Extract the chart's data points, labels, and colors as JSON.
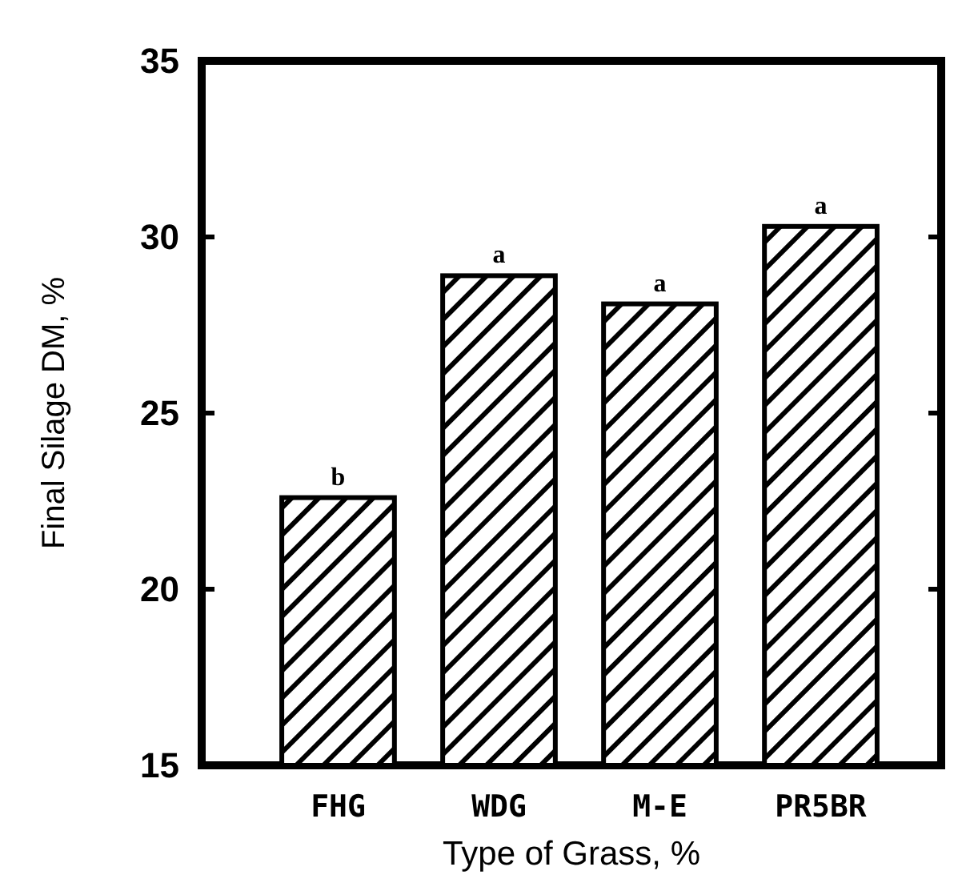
{
  "chart_data": {
    "type": "bar",
    "xlabel": "Type of Grass, %",
    "ylabel": "Final Silage DM, %",
    "categories": [
      "FHG",
      "WDG",
      "M-E",
      "PR5BR"
    ],
    "values": [
      22.6,
      28.9,
      28.1,
      30.3
    ],
    "color": "#000000",
    "ylim": [
      15,
      35
    ],
    "yticks": [
      15,
      20,
      25,
      30,
      35
    ],
    "annotations": [
      {
        "text": "b",
        "x": "FHG",
        "y": 22.6
      },
      {
        "text": "a",
        "x": "WDG",
        "y": 28.9
      },
      {
        "text": "a",
        "x": "M-E",
        "y": 28.1
      },
      {
        "text": "a",
        "x": "PR5BR",
        "y": 30.3
      }
    ]
  }
}
